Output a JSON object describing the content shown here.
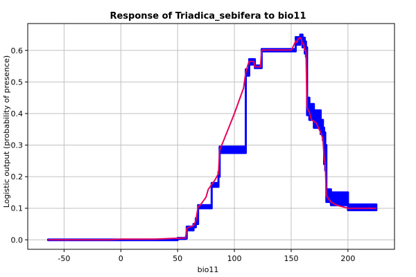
{
  "chart_data": {
    "type": "line",
    "title": "Response of Triadica_sebifera to bio11",
    "xlabel": "bio11",
    "ylabel": "Logistic output (probability of presence)",
    "xlim": [
      -82,
      241
    ],
    "ylim": [
      -0.03,
      0.685
    ],
    "xticks": [
      -50,
      0,
      50,
      100,
      150,
      200
    ],
    "yticks": [
      0.0,
      0.1,
      0.2,
      0.3,
      0.4,
      0.5,
      0.6
    ],
    "xtick_labels": [
      "-50",
      "0",
      "50",
      "100",
      "150",
      "200"
    ],
    "ytick_labels": [
      "0.0",
      "0.1",
      "0.2",
      "0.3",
      "0.4",
      "0.5",
      "0.6"
    ],
    "grid": true,
    "colors": {
      "mean": "#e8005a",
      "band": "#0000ff",
      "grid": "#c0c0c0"
    },
    "series": [
      {
        "role": "mean",
        "x": [
          -64,
          -10,
          0,
          30,
          50,
          57,
          58,
          64,
          66,
          68,
          70,
          75,
          77,
          80,
          83,
          86,
          87,
          90,
          95,
          100,
          105,
          108,
          110,
          112,
          113,
          117,
          118,
          123,
          124,
          125,
          150,
          151,
          154,
          155,
          156,
          157,
          158,
          159,
          160,
          161,
          162,
          163,
          164,
          165,
          166,
          167,
          168,
          170,
          172,
          174,
          176,
          178,
          179,
          180,
          181,
          183,
          185,
          190,
          200,
          225
        ],
        "y": [
          0.0,
          0.0,
          0.002,
          0.002,
          0.005,
          0.006,
          0.037,
          0.045,
          0.06,
          0.105,
          0.11,
          0.135,
          0.16,
          0.175,
          0.19,
          0.21,
          0.285,
          0.31,
          0.355,
          0.4,
          0.45,
          0.48,
          0.53,
          0.555,
          0.565,
          0.565,
          0.548,
          0.548,
          0.6,
          0.601,
          0.601,
          0.606,
          0.63,
          0.625,
          0.635,
          0.638,
          0.64,
          0.635,
          0.62,
          0.62,
          0.6,
          0.6,
          0.42,
          0.41,
          0.405,
          0.39,
          0.38,
          0.375,
          0.37,
          0.355,
          0.34,
          0.32,
          0.26,
          0.24,
          0.14,
          0.13,
          0.12,
          0.11,
          0.1,
          0.1
        ]
      },
      {
        "role": "band-upper",
        "x": [
          -64,
          50,
          57,
          58,
          64,
          66,
          68,
          80,
          86,
          87,
          110,
          113,
          117,
          118,
          123,
          124,
          150,
          154,
          158,
          160,
          162,
          163,
          164,
          166,
          170,
          176,
          178,
          179,
          180,
          181,
          185,
          200,
          225
        ],
        "y": [
          0.001,
          0.006,
          0.008,
          0.042,
          0.05,
          0.068,
          0.11,
          0.18,
          0.215,
          0.295,
          0.54,
          0.572,
          0.572,
          0.552,
          0.552,
          0.604,
          0.604,
          0.642,
          0.65,
          0.64,
          0.628,
          0.61,
          0.45,
          0.43,
          0.41,
          0.38,
          0.355,
          0.34,
          0.3,
          0.16,
          0.15,
          0.112,
          0.112
        ]
      },
      {
        "role": "band-lower",
        "x": [
          -64,
          50,
          57,
          58,
          64,
          66,
          68,
          80,
          86,
          87,
          110,
          113,
          117,
          118,
          123,
          124,
          150,
          154,
          158,
          160,
          162,
          163,
          164,
          166,
          170,
          176,
          178,
          179,
          180,
          181,
          185,
          200,
          225
        ],
        "y": [
          -0.001,
          0.003,
          0.004,
          0.03,
          0.04,
          0.05,
          0.1,
          0.168,
          0.2,
          0.275,
          0.52,
          0.555,
          0.555,
          0.544,
          0.544,
          0.597,
          0.597,
          0.618,
          0.625,
          0.61,
          0.59,
          0.58,
          0.395,
          0.38,
          0.355,
          0.335,
          0.315,
          0.24,
          0.22,
          0.12,
          0.11,
          0.094,
          0.094
        ]
      }
    ]
  }
}
